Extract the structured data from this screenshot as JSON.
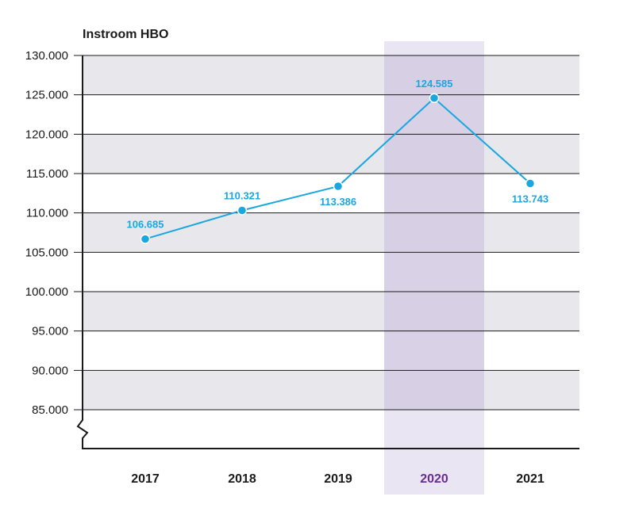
{
  "chart_data": {
    "type": "line",
    "title": "Instroom HBO",
    "xlabel": "",
    "ylabel": "",
    "categories": [
      "2017",
      "2018",
      "2019",
      "2020",
      "2021"
    ],
    "series": [
      {
        "values": [
          106685,
          110321,
          113386,
          124585,
          113743
        ],
        "labels": [
          "106.685",
          "110.321",
          "113.386",
          "124.585",
          "113.743"
        ]
      }
    ],
    "ylim": [
      85000,
      130000
    ],
    "yticks": [
      85000,
      90000,
      95000,
      100000,
      105000,
      110000,
      115000,
      120000,
      125000,
      130000
    ],
    "ytick_labels": [
      "85.000",
      "90.000",
      "95.000",
      "100.000",
      "105.000",
      "110.000",
      "115.000",
      "120.000",
      "125.000",
      "130.000"
    ],
    "y_axis_break": true,
    "highlight_category": "2020",
    "grid": true,
    "colors": {
      "line": "#1aa7e0",
      "band_dark": "#e8e8ec",
      "band_light": "#ffffff",
      "highlight": "#e6e1f0",
      "highlight_text": "#6b2c91",
      "text": "#1a1a1a",
      "axis": "#1a1a1a"
    }
  }
}
